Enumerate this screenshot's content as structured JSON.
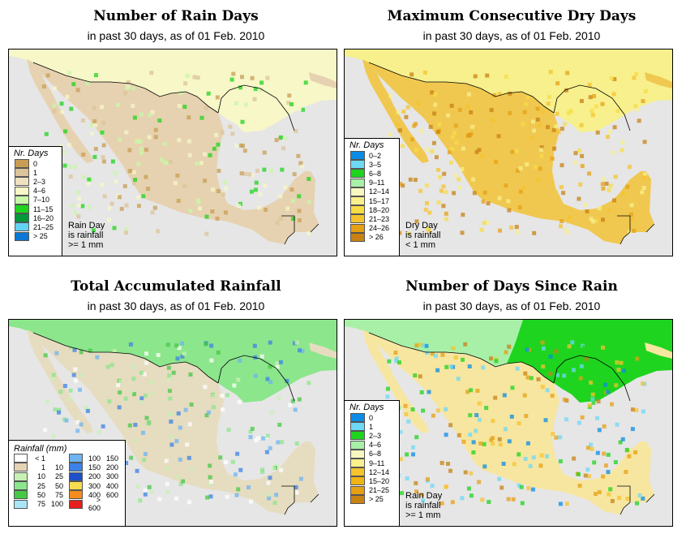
{
  "colors": {
    "ocean": "#e6e6e6",
    "border": "#000000"
  },
  "panels": [
    {
      "title": "Number of Rain Days",
      "subtitle": "in past 30 days, as of  01 Feb. 2010",
      "legend_title": "Nr. Days",
      "legend": [
        {
          "label": "0",
          "color": "#c89e55"
        },
        {
          "label": "1",
          "color": "#dcc39a"
        },
        {
          "label": "2–3",
          "color": "#ede1c0"
        },
        {
          "label": "4–6",
          "color": "#f7f7c8"
        },
        {
          "label": "7–10",
          "color": "#c8f7a8"
        },
        {
          "label": "11–15",
          "color": "#1ed41e"
        },
        {
          "label": "16–20",
          "color": "#009a3a"
        },
        {
          "label": "21–25",
          "color": "#64d2f5"
        },
        {
          "label": "> 25",
          "color": "#0a78d4"
        }
      ],
      "note": [
        "Rain Day",
        "is rainfall",
        ">= 1 mm"
      ]
    },
    {
      "title": "Maximum Consecutive Dry Days",
      "subtitle": "in past 30 days, as of  01 Feb. 2010",
      "legend_title": "Nr. Days",
      "legend": [
        {
          "label": "0–2",
          "color": "#0a8ce6"
        },
        {
          "label": "3–5",
          "color": "#6ed8f5"
        },
        {
          "label": "6–8",
          "color": "#1ed41e"
        },
        {
          "label": "9–11",
          "color": "#a8f0a8"
        },
        {
          "label": "12–14",
          "color": "#f7f7c0"
        },
        {
          "label": "15–17",
          "color": "#f7f08c"
        },
        {
          "label": "18–20",
          "color": "#f7dc46"
        },
        {
          "label": "21–23",
          "color": "#f5c32d"
        },
        {
          "label": "24–26",
          "color": "#e6a014"
        },
        {
          "label": "> 26",
          "color": "#c88214"
        }
      ],
      "note": [
        "Dry Day",
        "is rainfall",
        "< 1 mm"
      ]
    },
    {
      "title": "Total Accumulated Rainfall",
      "subtitle": "in past 30 days, as of  01 Feb. 2010",
      "legend_title": "Rainfall (mm)",
      "legend_left": [
        {
          "lo": "< 1",
          "hi": "",
          "color": "#ffffff"
        },
        {
          "lo": "1",
          "hi": "10",
          "color": "#e6d2b4"
        },
        {
          "lo": "10",
          "hi": "25",
          "color": "#c8f0b4"
        },
        {
          "lo": "25",
          "hi": "50",
          "color": "#8ce68c"
        },
        {
          "lo": "50",
          "hi": "75",
          "color": "#46c846"
        },
        {
          "lo": "75",
          "hi": "100",
          "color": "#aae6f5"
        }
      ],
      "legend_right": [
        {
          "lo": "100",
          "hi": "150",
          "color": "#6eb4f0"
        },
        {
          "lo": "150",
          "hi": "200",
          "color": "#3c82e6"
        },
        {
          "lo": "200",
          "hi": "300",
          "color": "#1e50c8"
        },
        {
          "lo": "300",
          "hi": "400",
          "color": "#f7dc50"
        },
        {
          "lo": "400",
          "hi": "600",
          "color": "#f58c1e"
        },
        {
          "lo": "> 600",
          "hi": "",
          "color": "#e61e1e"
        }
      ]
    },
    {
      "title": "Number of Days Since Rain",
      "subtitle": "in past 30 days, as of  01 Feb. 2010",
      "legend_title": "Nr. Days",
      "legend": [
        {
          "label": "0",
          "color": "#0a8ce6"
        },
        {
          "label": "1",
          "color": "#6ed8f5"
        },
        {
          "label": "2–3",
          "color": "#1ed41e"
        },
        {
          "label": "4–6",
          "color": "#a8f0a8"
        },
        {
          "label": "6–8",
          "color": "#f7f7c0"
        },
        {
          "label": "9–11",
          "color": "#f7f08c"
        },
        {
          "label": "12–14",
          "color": "#f5c32d"
        },
        {
          "label": "15–20",
          "color": "#f0b414"
        },
        {
          "label": "21–25",
          "color": "#e6a014"
        },
        {
          "label": "> 25",
          "color": "#c88214"
        }
      ],
      "note": [
        "Rain Day",
        "is rainfall",
        ">= 1 mm"
      ]
    }
  ]
}
